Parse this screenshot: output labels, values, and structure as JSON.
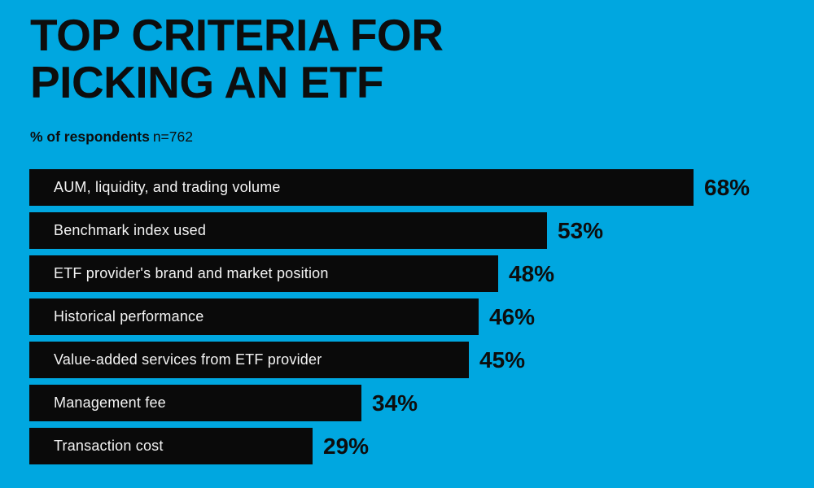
{
  "colors": {
    "background": "#00a7e0",
    "bar": "#0a0a0a",
    "title_text": "#0d0d0d",
    "bar_label_text": "#f4f4f4",
    "value_text": "#0d0d0d"
  },
  "header": {
    "title_line1": "TOP CRITERIA FOR",
    "title_line2": "PICKING AN ETF",
    "subtitle_bold": "% of respondents",
    "subtitle_n": "n=762"
  },
  "chart_data": {
    "type": "bar",
    "orientation": "horizontal",
    "title": "TOP CRITERIA FOR PICKING AN ETF",
    "subtitle": "% of respondents",
    "sample_size_label": "n=762",
    "categories": [
      "AUM, liquidity, and trading volume",
      "Benchmark index used",
      "ETF provider's brand and market position",
      "Historical performance",
      "Value-added services from ETF provider",
      "Management fee",
      "Transaction cost"
    ],
    "values": [
      68,
      53,
      48,
      46,
      45,
      34,
      29
    ],
    "value_suffix": "%",
    "xlabel": "",
    "ylabel": "",
    "xlim": [
      0,
      100
    ],
    "grid": false,
    "legend": false,
    "value_labels_position": "outside-end",
    "category_labels_position": "inside-start"
  }
}
